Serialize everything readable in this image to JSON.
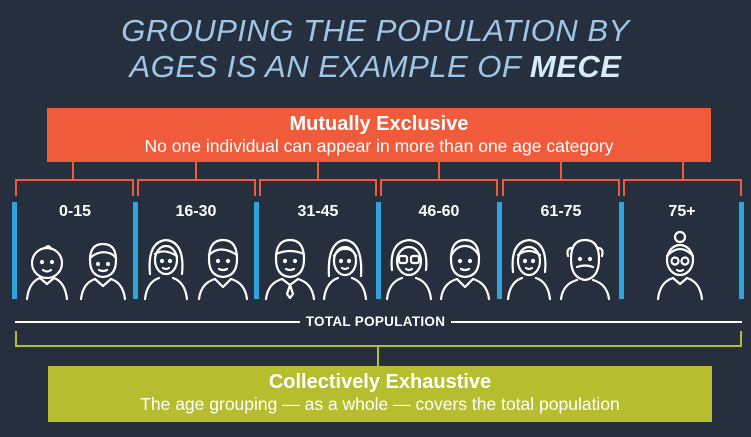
{
  "title": {
    "line1": "GROUPING THE POPULATION BY",
    "line2_prefix": "AGES IS AN EXAMPLE OF ",
    "line2_emphasis": "MECE"
  },
  "mutually_exclusive": {
    "heading": "Mutually Exclusive",
    "description": "No one individual can appear in more than one age category"
  },
  "age_groups": [
    {
      "label": "0-15",
      "icons": [
        "baby-face-icon",
        "boy-face-icon"
      ]
    },
    {
      "label": "16-30",
      "icons": [
        "young-woman-face-icon",
        "young-man-face-icon"
      ]
    },
    {
      "label": "31-45",
      "icons": [
        "man-with-tie-face-icon",
        "woman-face-icon"
      ]
    },
    {
      "label": "46-60",
      "icons": [
        "woman-with-glasses-face-icon",
        "man-face-icon"
      ]
    },
    {
      "label": "61-75",
      "icons": [
        "older-woman-face-icon",
        "bearded-man-face-icon"
      ]
    },
    {
      "label": "75+",
      "icons": [
        "elderly-woman-bun-glasses-face-icon"
      ]
    }
  ],
  "total_label": "TOTAL POPULATION",
  "collectively_exhaustive": {
    "heading": "Collectively Exhaustive",
    "description": "The age grouping — as a whole — covers the total population"
  },
  "colors": {
    "background": "#262f3d",
    "me_box": "#ef5b3b",
    "ce_box": "#b6bd2f",
    "divider": "#2ea4dc",
    "title": "#9fc6e6"
  }
}
